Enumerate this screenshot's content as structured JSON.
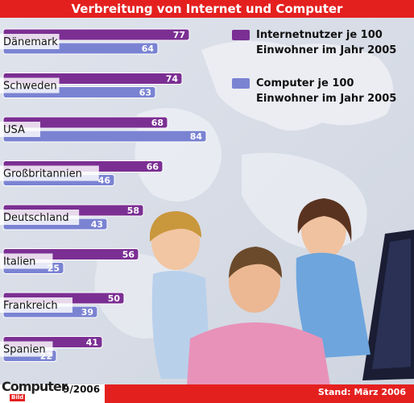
{
  "chart_data": {
    "type": "bar",
    "orientation": "horizontal",
    "title": "Verbreitung von Internet und Computer",
    "categories": [
      "Dänemark",
      "Schweden",
      "USA",
      "Großbritannien",
      "Deutschland",
      "Italien",
      "Frankreich",
      "Spanien"
    ],
    "series": [
      {
        "name": "Internetnutzer je 100 Einwohner im Jahr 2005",
        "values": [
          77,
          74,
          68,
          66,
          58,
          56,
          50,
          41
        ],
        "color": "#7b2f93"
      },
      {
        "name": "Computer je 100 Einwohner im Jahr 2005",
        "values": [
          64,
          63,
          84,
          46,
          43,
          25,
          39,
          22
        ],
        "color": "#7a83d2"
      }
    ],
    "legend_position": "top-right",
    "grid": false,
    "xlim": [
      0,
      100
    ]
  },
  "legend": {
    "internet_line1": "Internetnutzer je 100",
    "internet_line2": "Einwohner im Jahr 2005",
    "computer_line1": "Computer je 100",
    "computer_line2": "Einwohner im Jahr 2005"
  },
  "footer": {
    "logo": "Computer",
    "logo_sub": "Bild",
    "issue": "9/2006",
    "stand": "Stand: März 2006"
  },
  "colors": {
    "header_red": "#e4201f",
    "internet": "#7b2f93",
    "computer": "#7a83d2"
  }
}
